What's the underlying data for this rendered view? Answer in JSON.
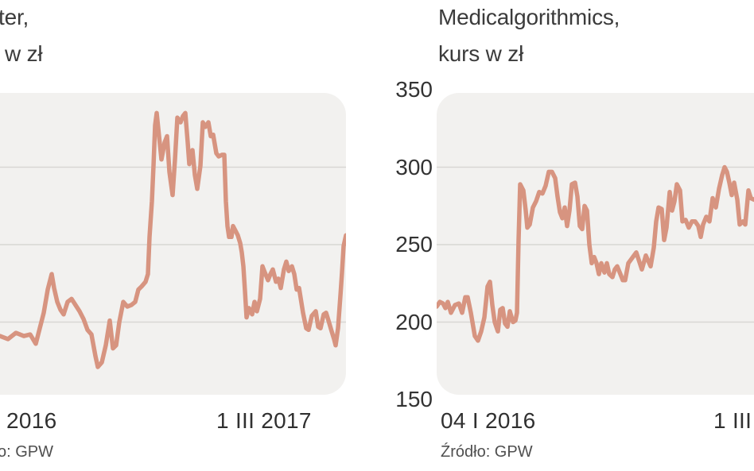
{
  "colors": {
    "page_bg": "#ffffff",
    "plot_bg": "#f2f1ef",
    "gridline": "#d8d7d4",
    "line": "#d79480",
    "title_text": "#3b3b3b",
    "tick_text": "#303030",
    "source_text": "#4f4f4f"
  },
  "chart_data": [
    {
      "type": "line",
      "title": "ter, w zł",
      "title_line1": "ter,",
      "title_line2": "w zł",
      "source": "o: GPW",
      "ylim": [
        150,
        350
      ],
      "y_tick_labels_visible": false,
      "y_tick_labels": [],
      "y_tick_values": [],
      "gridlines": [
        300,
        250,
        200
      ],
      "x_tick_labels": [
        "2016",
        "1 III 2017"
      ],
      "points": [
        [
          0,
          191
        ],
        [
          10,
          189
        ],
        [
          20,
          193
        ],
        [
          30,
          191
        ],
        [
          38,
          192
        ],
        [
          45,
          186
        ],
        [
          50,
          196
        ],
        [
          55,
          206
        ],
        [
          60,
          221
        ],
        [
          65,
          231
        ],
        [
          68,
          222
        ],
        [
          72,
          213
        ],
        [
          76,
          208
        ],
        [
          80,
          205
        ],
        [
          85,
          213
        ],
        [
          90,
          215
        ],
        [
          95,
          211
        ],
        [
          100,
          207
        ],
        [
          105,
          202
        ],
        [
          110,
          195
        ],
        [
          115,
          192
        ],
        [
          120,
          178
        ],
        [
          123,
          171
        ],
        [
          128,
          174
        ],
        [
          133,
          185
        ],
        [
          138,
          201
        ],
        [
          142,
          183
        ],
        [
          146,
          185
        ],
        [
          150,
          200
        ],
        [
          155,
          213
        ],
        [
          160,
          210
        ],
        [
          165,
          211
        ],
        [
          170,
          213
        ],
        [
          174,
          221
        ],
        [
          178,
          223
        ],
        [
          183,
          226
        ],
        [
          186,
          231
        ],
        [
          188,
          255
        ],
        [
          191,
          278
        ],
        [
          193,
          301
        ],
        [
          195,
          327
        ],
        [
          197,
          335
        ],
        [
          200,
          320
        ],
        [
          203,
          305
        ],
        [
          207,
          316
        ],
        [
          210,
          320
        ],
        [
          213,
          297
        ],
        [
          217,
          282
        ],
        [
          220,
          305
        ],
        [
          223,
          332
        ],
        [
          227,
          329
        ],
        [
          230,
          333
        ],
        [
          233,
          335
        ],
        [
          236,
          316
        ],
        [
          238,
          302
        ],
        [
          242,
          311
        ],
        [
          245,
          295
        ],
        [
          248,
          286
        ],
        [
          252,
          301
        ],
        [
          255,
          329
        ],
        [
          258,
          326
        ],
        [
          262,
          329
        ],
        [
          265,
          320
        ],
        [
          268,
          321
        ],
        [
          272,
          309
        ],
        [
          275,
          307
        ],
        [
          279,
          308
        ],
        [
          282,
          308
        ],
        [
          284,
          278
        ],
        [
          286,
          262
        ],
        [
          288,
          255
        ],
        [
          291,
          255
        ],
        [
          293,
          262
        ],
        [
          296,
          259
        ],
        [
          299,
          256
        ],
        [
          302,
          251
        ],
        [
          304,
          245
        ],
        [
          306,
          236
        ],
        [
          308,
          220
        ],
        [
          310,
          203
        ],
        [
          313,
          209
        ],
        [
          317,
          205
        ],
        [
          320,
          213
        ],
        [
          323,
          207
        ],
        [
          327,
          215
        ],
        [
          330,
          236
        ],
        [
          333,
          232
        ],
        [
          337,
          227
        ],
        [
          340,
          231
        ],
        [
          343,
          234
        ],
        [
          347,
          226
        ],
        [
          350,
          228
        ],
        [
          353,
          222
        ],
        [
          357,
          234
        ],
        [
          360,
          239
        ],
        [
          363,
          233
        ],
        [
          367,
          236
        ],
        [
          370,
          231
        ],
        [
          373,
          221
        ],
        [
          376,
          222
        ],
        [
          381,
          206
        ],
        [
          385,
          196
        ],
        [
          388,
          195
        ],
        [
          392,
          204
        ],
        [
          397,
          207
        ],
        [
          400,
          197
        ],
        [
          403,
          196
        ],
        [
          407,
          205
        ],
        [
          410,
          206
        ],
        [
          413,
          201
        ],
        [
          417,
          194
        ],
        [
          420,
          189
        ],
        [
          422,
          185
        ],
        [
          425,
          196
        ],
        [
          428,
          217
        ],
        [
          430,
          232
        ],
        [
          432,
          249
        ],
        [
          435,
          256
        ]
      ]
    },
    {
      "type": "line",
      "title": "Medicalgorithmics, kurs w zł",
      "title_line1": "Medicalgorithmics,",
      "title_line2": "kurs w zł",
      "source": "Źródło: GPW",
      "ylim": [
        150,
        350
      ],
      "y_tick_labels_visible": true,
      "y_tick_labels": [
        "350",
        "300",
        "250",
        "200",
        "150"
      ],
      "y_tick_values": [
        350,
        300,
        250,
        200,
        150
      ],
      "gridlines": [
        300,
        250,
        200
      ],
      "x_tick_labels": [
        "04 I 2016",
        "1 III"
      ],
      "points": [
        [
          0,
          210
        ],
        [
          4,
          213
        ],
        [
          8,
          212
        ],
        [
          11,
          209
        ],
        [
          14,
          213
        ],
        [
          18,
          206
        ],
        [
          23,
          211
        ],
        [
          28,
          212
        ],
        [
          32,
          206
        ],
        [
          36,
          216
        ],
        [
          39,
          216
        ],
        [
          43,
          206
        ],
        [
          48,
          191
        ],
        [
          52,
          188
        ],
        [
          56,
          194
        ],
        [
          60,
          203
        ],
        [
          64,
          223
        ],
        [
          67,
          226
        ],
        [
          70,
          211
        ],
        [
          73,
          200
        ],
        [
          77,
          194
        ],
        [
          80,
          208
        ],
        [
          83,
          209
        ],
        [
          86,
          199
        ],
        [
          89,
          197
        ],
        [
          92,
          207
        ],
        [
          96,
          200
        ],
        [
          99,
          201
        ],
        [
          101,
          206
        ],
        [
          103,
          253
        ],
        [
          105,
          289
        ],
        [
          109,
          285
        ],
        [
          112,
          272
        ],
        [
          114,
          261
        ],
        [
          117,
          263
        ],
        [
          121,
          274
        ],
        [
          125,
          278
        ],
        [
          129,
          284
        ],
        [
          133,
          283
        ],
        [
          137,
          288
        ],
        [
          141,
          297
        ],
        [
          145,
          297
        ],
        [
          149,
          293
        ],
        [
          152,
          281
        ],
        [
          155,
          271
        ],
        [
          158,
          267
        ],
        [
          161,
          274
        ],
        [
          164,
          262
        ],
        [
          167,
          272
        ],
        [
          170,
          289
        ],
        [
          174,
          290
        ],
        [
          177,
          281
        ],
        [
          180,
          262
        ],
        [
          183,
          260
        ],
        [
          186,
          275
        ],
        [
          189,
          272
        ],
        [
          192,
          250
        ],
        [
          195,
          238
        ],
        [
          198,
          242
        ],
        [
          201,
          238
        ],
        [
          204,
          231
        ],
        [
          207,
          238
        ],
        [
          211,
          232
        ],
        [
          214,
          238
        ],
        [
          217,
          231
        ],
        [
          221,
          229
        ],
        [
          224,
          234
        ],
        [
          227,
          236
        ],
        [
          231,
          231
        ],
        [
          234,
          227
        ],
        [
          237,
          227
        ],
        [
          241,
          238
        ],
        [
          251,
          245
        ],
        [
          258,
          234
        ],
        [
          263,
          243
        ],
        [
          269,
          236
        ],
        [
          273,
          248
        ],
        [
          276,
          265
        ],
        [
          279,
          274
        ],
        [
          283,
          273
        ],
        [
          286,
          253
        ],
        [
          289,
          261
        ],
        [
          293,
          284
        ],
        [
          296,
          272
        ],
        [
          299,
          278
        ],
        [
          302,
          289
        ],
        [
          306,
          285
        ],
        [
          309,
          265
        ],
        [
          313,
          266
        ],
        [
          317,
          261
        ],
        [
          321,
          265
        ],
        [
          325,
          265
        ],
        [
          329,
          262
        ],
        [
          332,
          255
        ],
        [
          335,
          263
        ],
        [
          339,
          268
        ],
        [
          343,
          265
        ],
        [
          347,
          280
        ],
        [
          351,
          274
        ],
        [
          355,
          286
        ],
        [
          359,
          295
        ],
        [
          362,
          300
        ],
        [
          365,
          297
        ],
        [
          368,
          290
        ],
        [
          371,
          282
        ],
        [
          374,
          290
        ],
        [
          378,
          279
        ],
        [
          381,
          263
        ],
        [
          385,
          265
        ],
        [
          388,
          263
        ],
        [
          392,
          285
        ],
        [
          395,
          280
        ],
        [
          399,
          279
        ]
      ]
    }
  ]
}
